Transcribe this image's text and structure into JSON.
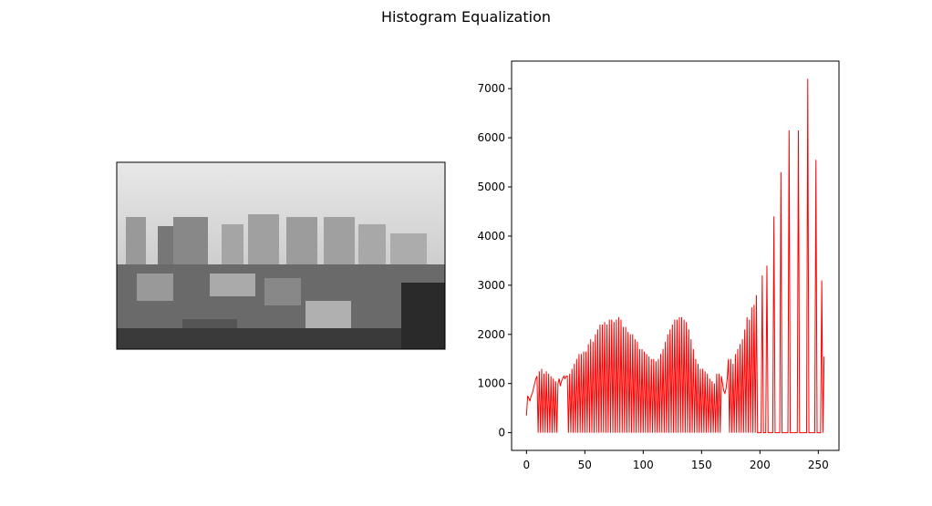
{
  "chart_data": {
    "type": "line",
    "title": "Histogram Equalization",
    "x": [
      0,
      1,
      2,
      3,
      4,
      5,
      6,
      7,
      8,
      9,
      10,
      11,
      12,
      13,
      14,
      15,
      16,
      17,
      18,
      19,
      20,
      21,
      22,
      23,
      24,
      25,
      26,
      27,
      28,
      29,
      30,
      31,
      32,
      33,
      34,
      35,
      36,
      37,
      38,
      39,
      40,
      41,
      42,
      43,
      44,
      45,
      46,
      47,
      48,
      49,
      50,
      51,
      52,
      53,
      54,
      55,
      56,
      57,
      58,
      59,
      60,
      61,
      62,
      63,
      64,
      65,
      66,
      67,
      68,
      69,
      70,
      71,
      72,
      73,
      74,
      75,
      76,
      77,
      78,
      79,
      80,
      81,
      82,
      83,
      84,
      85,
      86,
      87,
      88,
      89,
      90,
      91,
      92,
      93,
      94,
      95,
      96,
      97,
      98,
      99,
      100,
      101,
      102,
      103,
      104,
      105,
      106,
      107,
      108,
      109,
      110,
      111,
      112,
      113,
      114,
      115,
      116,
      117,
      118,
      119,
      120,
      121,
      122,
      123,
      124,
      125,
      126,
      127,
      128,
      129,
      130,
      131,
      132,
      133,
      134,
      135,
      136,
      137,
      138,
      139,
      140,
      141,
      142,
      143,
      144,
      145,
      146,
      147,
      148,
      149,
      150,
      151,
      152,
      153,
      154,
      155,
      156,
      157,
      158,
      159,
      160,
      161,
      162,
      163,
      164,
      165,
      166,
      167,
      168,
      169,
      170,
      171,
      172,
      173,
      174,
      175,
      176,
      177,
      178,
      179,
      180,
      181,
      182,
      183,
      184,
      185,
      186,
      187,
      188,
      189,
      190,
      191,
      192,
      193,
      194,
      195,
      196,
      197,
      198,
      199,
      200,
      201,
      202,
      203,
      204,
      205,
      206,
      207,
      208,
      209,
      210,
      211,
      212,
      213,
      214,
      215,
      216,
      217,
      218,
      219,
      220,
      221,
      222,
      223,
      224,
      225,
      226,
      227,
      228,
      229,
      230,
      231,
      232,
      233,
      234,
      235,
      236,
      237,
      238,
      239,
      240,
      241,
      242,
      243,
      244,
      245,
      246,
      247,
      248,
      249,
      250,
      251,
      252,
      253,
      254,
      255
    ],
    "series": [
      {
        "color": "#ff0000",
        "values": [
          350,
          750,
          700,
          650,
          750,
          800,
          900,
          1000,
          1100,
          1150,
          0,
          1250,
          0,
          1300,
          0,
          1200,
          0,
          1250,
          0,
          1200,
          0,
          1150,
          0,
          1100,
          0,
          1050,
          0,
          1000,
          1100,
          950,
          1050,
          1100,
          1150,
          1100,
          1150,
          1150,
          0,
          1200,
          0,
          1300,
          0,
          1400,
          0,
          1500,
          0,
          1600,
          0,
          1600,
          0,
          1650,
          0,
          1650,
          0,
          1800,
          0,
          1900,
          0,
          1850,
          0,
          2000,
          0,
          2100,
          0,
          2200,
          0,
          2200,
          0,
          2250,
          0,
          2200,
          0,
          2300,
          0,
          2300,
          0,
          2250,
          0,
          2300,
          0,
          2350,
          0,
          2300,
          0,
          2150,
          0,
          2150,
          0,
          2050,
          0,
          2000,
          0,
          2000,
          0,
          1900,
          0,
          1850,
          0,
          1700,
          0,
          1700,
          0,
          1650,
          0,
          1600,
          0,
          1550,
          0,
          1500,
          0,
          1500,
          0,
          1450,
          0,
          1500,
          0,
          1600,
          0,
          1700,
          0,
          1850,
          0,
          2000,
          0,
          2100,
          0,
          2200,
          0,
          2300,
          0,
          2300,
          0,
          2350,
          0,
          2350,
          0,
          2300,
          0,
          2250,
          0,
          2100,
          0,
          1900,
          0,
          1700,
          0,
          1500,
          0,
          1400,
          0,
          1300,
          0,
          1300,
          0,
          1250,
          0,
          1200,
          0,
          1100,
          0,
          1050,
          0,
          1000,
          0,
          1200,
          0,
          1200,
          0,
          1150,
          1000,
          850,
          800,
          900,
          1100,
          1500,
          0,
          1500,
          0,
          1400,
          0,
          1600,
          0,
          1700,
          0,
          1800,
          0,
          1900,
          0,
          2100,
          0,
          2350,
          0,
          2300,
          0,
          2550,
          0,
          2600,
          0,
          2800,
          0,
          0,
          0,
          0,
          3200,
          0,
          0,
          0,
          3400,
          0,
          0,
          0,
          0,
          0,
          4400,
          0,
          0,
          0,
          0,
          0,
          5300,
          0,
          0,
          0,
          0,
          0,
          0,
          6150,
          0,
          0,
          0,
          0,
          0,
          0,
          0,
          6150,
          0,
          0,
          0,
          0,
          0,
          0,
          0,
          7200,
          0,
          0,
          0,
          0,
          0,
          0,
          5550,
          0,
          0,
          0,
          0,
          3100,
          0,
          1550
        ]
      }
    ],
    "xlim": [
      -12.75,
      267.75
    ],
    "ylim": [
      -360,
      7560
    ],
    "xticks": [
      0,
      50,
      100,
      150,
      200,
      250
    ],
    "yticks": [
      0,
      1000,
      2000,
      3000,
      4000,
      5000,
      6000,
      7000
    ]
  }
}
